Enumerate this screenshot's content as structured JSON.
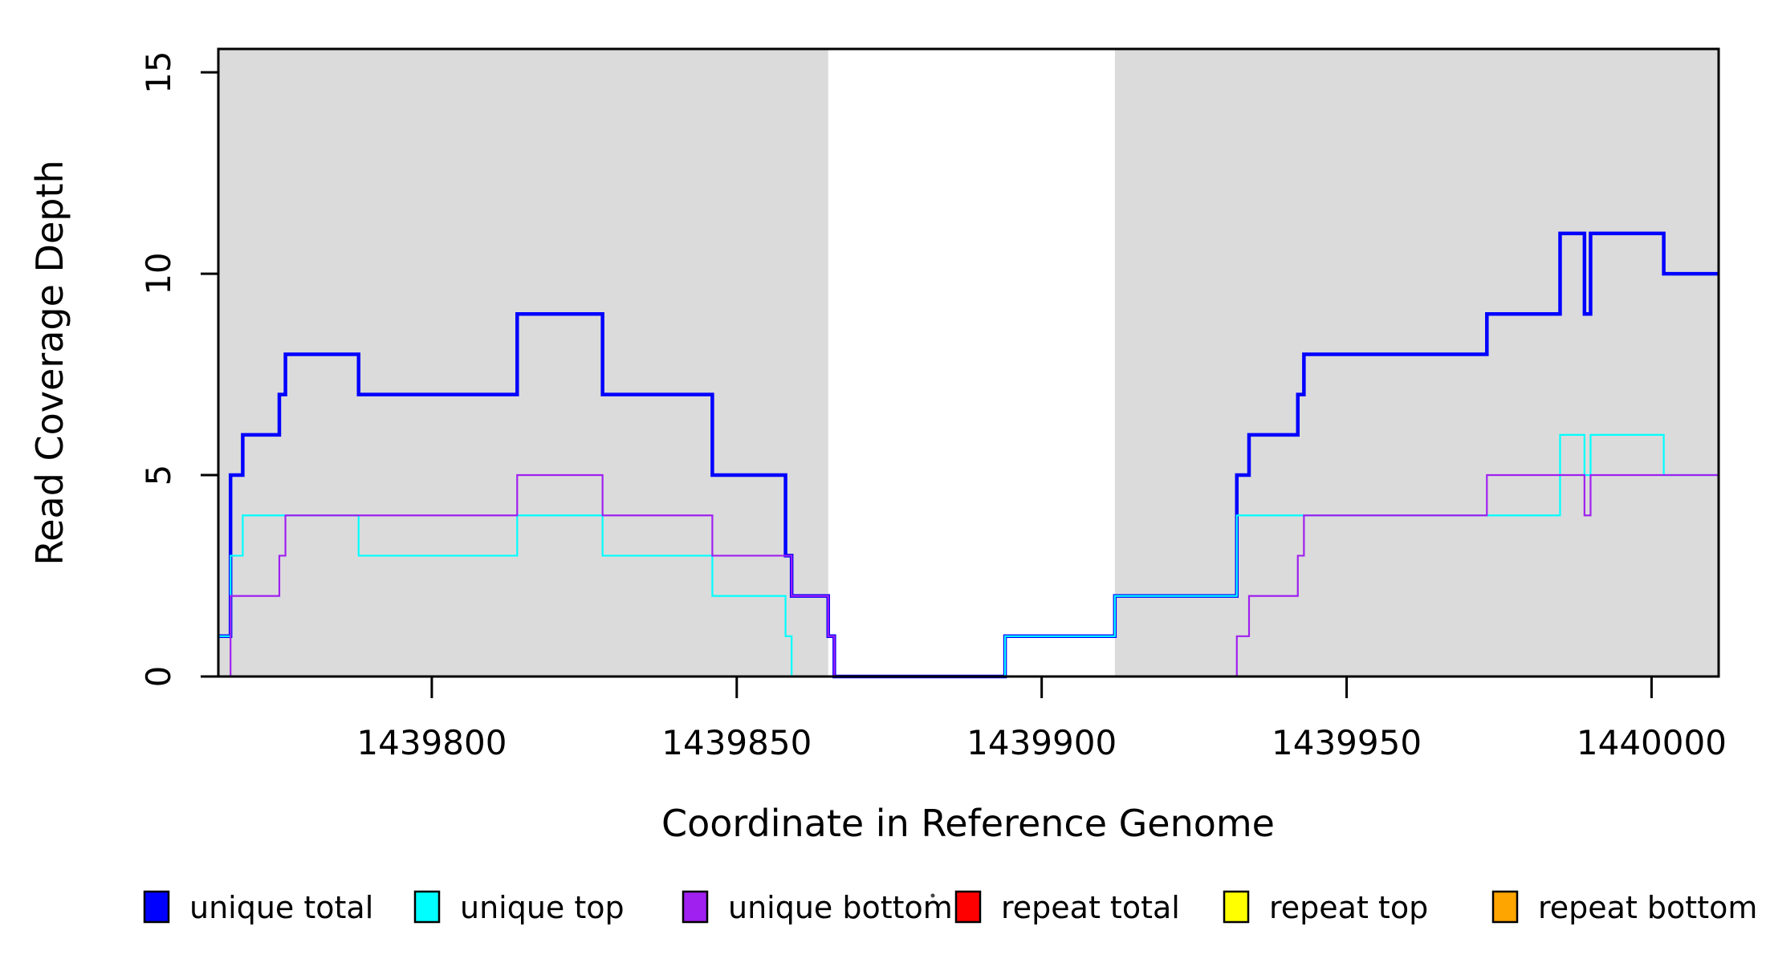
{
  "figure": {
    "title": "",
    "background": "#ffffff"
  },
  "chart_data": {
    "type": "line",
    "step": true,
    "title": "",
    "xlabel": "Coordinate in Reference Genome",
    "ylabel": "Read Coverage Depth",
    "xlim": [
      1439765,
      1440011
    ],
    "ylim": [
      0,
      15.58
    ],
    "xticks": [
      1439800,
      1439850,
      1439900,
      1439950,
      1440000
    ],
    "yticks": [
      0,
      5,
      10,
      15
    ],
    "grid": false,
    "box_color": "#000000",
    "shade_color": "#dbdbdb",
    "shaded_regions": [
      {
        "x0": 1439765,
        "x1": 1439865
      },
      {
        "x0": 1439912,
        "x1": 1440011
      }
    ],
    "series": [
      {
        "name": "unique total",
        "color": "#0000ff",
        "width": 4.5,
        "segments": [
          [
            [
              1439765,
              1
            ],
            [
              1439767,
              5
            ],
            [
              1439769,
              6
            ],
            [
              1439775,
              7
            ],
            [
              1439776,
              8
            ],
            [
              1439788,
              7
            ],
            [
              1439814,
              9
            ],
            [
              1439828,
              7
            ],
            [
              1439846,
              5
            ],
            [
              1439858,
              3
            ],
            [
              1439859,
              2
            ],
            [
              1439865,
              1
            ],
            [
              1439866,
              0
            ],
            [
              1439894,
              1
            ],
            [
              1439912,
              2
            ],
            [
              1439932,
              5
            ],
            [
              1439934,
              6
            ],
            [
              1439942,
              7
            ],
            [
              1439943,
              8
            ],
            [
              1439973,
              9
            ],
            [
              1439985,
              11
            ],
            [
              1439989,
              9
            ],
            [
              1439990,
              11
            ],
            [
              1440002,
              10
            ],
            [
              1440011,
              10
            ]
          ]
        ]
      },
      {
        "name": "unique top",
        "color": "#00ffff",
        "width": 2.2,
        "segments": [
          [
            [
              1439765,
              1
            ],
            [
              1439767,
              3
            ],
            [
              1439769,
              4
            ],
            [
              1439788,
              3
            ],
            [
              1439814,
              4
            ],
            [
              1439828,
              3
            ],
            [
              1439846,
              2
            ],
            [
              1439858,
              1
            ],
            [
              1439859,
              0
            ],
            [
              1439894,
              1
            ],
            [
              1439912,
              2
            ],
            [
              1439932,
              4
            ],
            [
              1439985,
              6
            ],
            [
              1439989,
              5
            ],
            [
              1439990,
              6
            ],
            [
              1440002,
              5
            ],
            [
              1440011,
              5
            ]
          ]
        ]
      },
      {
        "name": "unique bottom",
        "color": "#a020f0",
        "width": 2.2,
        "segments": [
          [
            [
              1439765,
              0
            ],
            [
              1439767,
              2
            ],
            [
              1439775,
              3
            ],
            [
              1439776,
              4
            ],
            [
              1439814,
              5
            ],
            [
              1439828,
              4
            ],
            [
              1439846,
              3
            ],
            [
              1439859,
              2
            ],
            [
              1439865,
              1
            ],
            [
              1439866,
              0
            ],
            [
              1439932,
              1
            ],
            [
              1439934,
              2
            ],
            [
              1439942,
              3
            ],
            [
              1439943,
              4
            ],
            [
              1439973,
              5
            ],
            [
              1439989,
              4
            ],
            [
              1439990,
              5
            ],
            [
              1440011,
              5
            ]
          ]
        ]
      },
      {
        "name": "repeat total",
        "color": "#ff0000",
        "width": 2.2,
        "segments": [
          [
            [
              1439765,
              0
            ],
            [
              1439865,
              0
            ]
          ],
          [
            [
              1439894,
              0
            ],
            [
              1440011,
              0
            ]
          ]
        ]
      },
      {
        "name": "repeat top",
        "color": "#ffff00",
        "width": 2.2,
        "segments": [
          [
            [
              1439765,
              0
            ],
            [
              1439865,
              0
            ]
          ],
          [
            [
              1439932,
              0
            ],
            [
              1440011,
              0
            ]
          ]
        ]
      },
      {
        "name": "repeat bottom",
        "color": "#ffa500",
        "width": 2.6,
        "segments": [
          [
            [
              1439765,
              0
            ],
            [
              1439865,
              0
            ]
          ],
          [
            [
              1439932,
              0
            ],
            [
              1440011,
              0
            ]
          ]
        ]
      }
    ],
    "legend": {
      "position": "bottom",
      "items": [
        {
          "label": "unique total",
          "color": "#0000ff"
        },
        {
          "label": "unique top",
          "color": "#00ffff"
        },
        {
          "label": "unique bottom",
          "color": "#a020f0"
        },
        {
          "label": "repeat total",
          "color": "#ff0000"
        },
        {
          "label": "repeat top",
          "color": "#ffff00"
        },
        {
          "label": "repeat bottom",
          "color": "#ffa500"
        }
      ]
    }
  }
}
